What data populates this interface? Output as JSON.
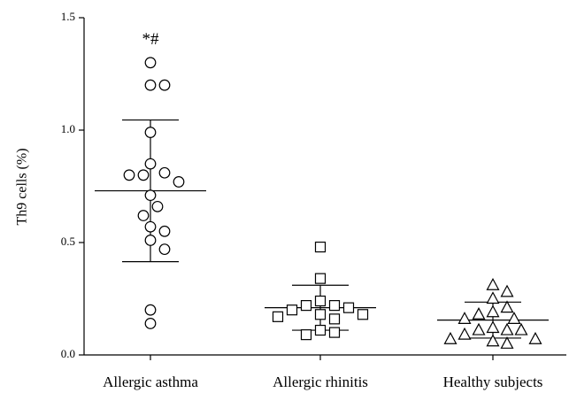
{
  "chart_data": {
    "type": "strip",
    "y_label": "Th9 cells (%)",
    "categories": [
      "Allergic asthma",
      "Allergic rhinitis",
      "Healthy subjects"
    ],
    "series": [
      {
        "name": "Allergic asthma",
        "marker": "circle",
        "color": "#000000",
        "values": [
          1.3,
          1.2,
          1.2,
          0.99,
          0.85,
          0.81,
          0.8,
          0.8,
          0.77,
          0.71,
          0.66,
          0.62,
          0.57,
          0.55,
          0.51,
          0.47,
          0.2,
          0.14
        ],
        "mean": 0.73,
        "sd": 0.315
      },
      {
        "name": "Allergic rhinitis",
        "marker": "square",
        "color": "#000000",
        "values": [
          0.48,
          0.34,
          0.24,
          0.22,
          0.22,
          0.21,
          0.2,
          0.18,
          0.18,
          0.17,
          0.16,
          0.11,
          0.1,
          0.09
        ],
        "mean": 0.21,
        "sd": 0.1
      },
      {
        "name": "Healthy subjects",
        "marker": "triangle",
        "color": "#000000",
        "values": [
          0.31,
          0.28,
          0.25,
          0.21,
          0.19,
          0.18,
          0.16,
          0.16,
          0.12,
          0.11,
          0.11,
          0.11,
          0.09,
          0.07,
          0.07,
          0.06,
          0.05
        ],
        "mean": 0.155,
        "sd": 0.08
      }
    ],
    "annotations": [
      {
        "text": "*#",
        "category": 0,
        "y": 1.4
      }
    ],
    "ylim": [
      0,
      1.5
    ],
    "yticks": [
      {
        "value": 0,
        "label": "0.0"
      },
      0.5,
      {
        "value": 1,
        "label": "1.0"
      },
      1.5
    ]
  }
}
